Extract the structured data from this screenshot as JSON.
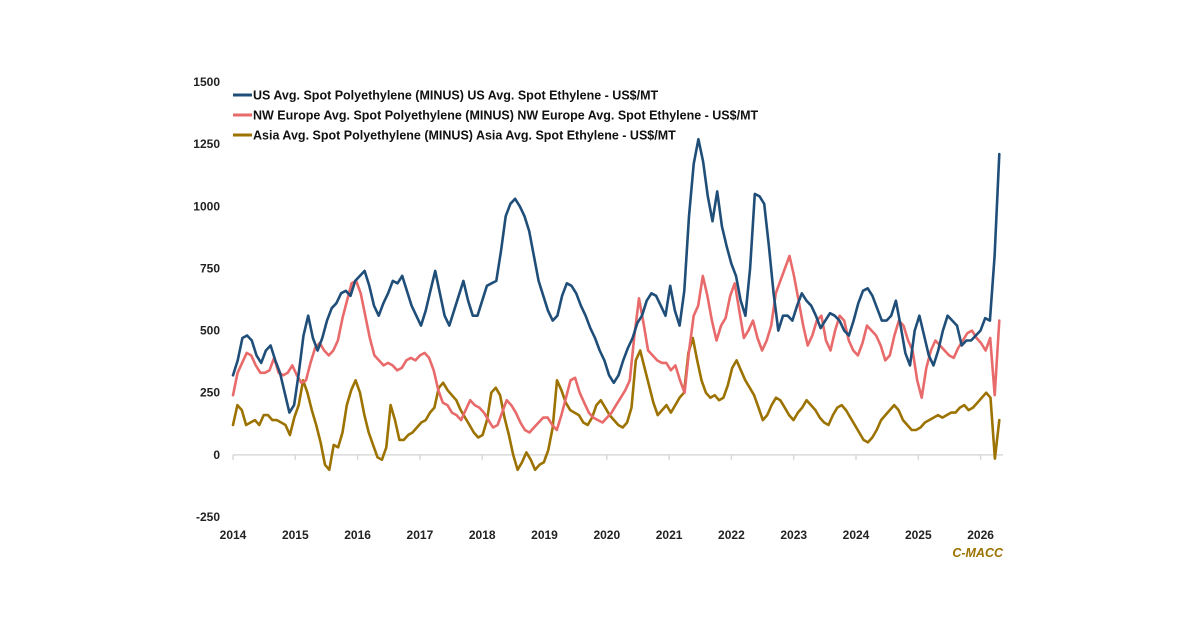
{
  "chart_data": {
    "type": "line",
    "title": "",
    "xlabel": "",
    "ylabel": "",
    "xlim": [
      2014,
      2026.3
    ],
    "ylim": [
      -250,
      1500
    ],
    "yticks": [
      -250,
      0,
      250,
      500,
      750,
      1000,
      1250,
      1500
    ],
    "xticks": [
      2014,
      2015,
      2016,
      2017,
      2018,
      2019,
      2020,
      2021,
      2022,
      2023,
      2024,
      2025,
      2026
    ],
    "zero_line": true,
    "grid": false,
    "legend_position": "top-left",
    "source_label": "C-MACC",
    "x_step_months": 1,
    "x_start": 2014.0,
    "series": [
      {
        "name": "US Avg. Spot Polyethylene (MINUS) US Avg. Spot Ethylene - US$/MT",
        "color": "#1F4E79",
        "values": [
          320,
          380,
          470,
          480,
          460,
          400,
          370,
          420,
          440,
          380,
          330,
          250,
          170,
          200,
          330,
          480,
          560,
          470,
          420,
          470,
          540,
          590,
          610,
          650,
          660,
          640,
          700,
          720,
          740,
          680,
          600,
          560,
          610,
          650,
          700,
          690,
          720,
          660,
          600,
          560,
          520,
          580,
          660,
          740,
          650,
          560,
          520,
          580,
          640,
          700,
          620,
          560,
          560,
          620,
          680,
          690,
          700,
          820,
          960,
          1010,
          1030,
          1000,
          960,
          900,
          800,
          700,
          640,
          580,
          540,
          560,
          640,
          690,
          680,
          650,
          600,
          560,
          510,
          470,
          420,
          380,
          320,
          290,
          320,
          380,
          430,
          470,
          530,
          560,
          620,
          650,
          640,
          600,
          560,
          680,
          580,
          520,
          660,
          960,
          1170,
          1270,
          1180,
          1040,
          940,
          1060,
          920,
          840,
          770,
          720,
          620,
          560,
          750,
          1050,
          1040,
          1010,
          840,
          650,
          500,
          560,
          560,
          540,
          600,
          650,
          620,
          600,
          560,
          510,
          540,
          570,
          560,
          540,
          500,
          480,
          540,
          610,
          660,
          670,
          640,
          590,
          540,
          540,
          560,
          620,
          520,
          410,
          360,
          500,
          560,
          480,
          400,
          360,
          420,
          500,
          560,
          540,
          520,
          440,
          460,
          460,
          480,
          500,
          550,
          540,
          800,
          1210
        ]
      },
      {
        "name": "NW Europe Avg. Spot Polyethylene (MINUS) NW Europe Avg. Spot Ethylene - US$/MT",
        "color": "#E86A6A",
        "values": [
          240,
          330,
          370,
          410,
          400,
          360,
          330,
          330,
          340,
          390,
          330,
          320,
          330,
          360,
          320,
          290,
          300,
          370,
          430,
          450,
          420,
          400,
          420,
          460,
          550,
          620,
          690,
          700,
          650,
          560,
          470,
          400,
          380,
          360,
          370,
          360,
          340,
          350,
          380,
          390,
          380,
          400,
          410,
          390,
          340,
          260,
          210,
          200,
          170,
          160,
          140,
          180,
          220,
          200,
          190,
          170,
          140,
          110,
          120,
          170,
          220,
          200,
          170,
          130,
          100,
          90,
          110,
          130,
          150,
          150,
          120,
          100,
          160,
          230,
          300,
          310,
          250,
          210,
          170,
          150,
          140,
          130,
          150,
          170,
          200,
          230,
          260,
          300,
          480,
          630,
          530,
          420,
          400,
          380,
          370,
          370,
          340,
          360,
          300,
          250,
          420,
          560,
          600,
          720,
          640,
          540,
          460,
          520,
          550,
          640,
          690,
          580,
          470,
          500,
          540,
          470,
          420,
          460,
          520,
          650,
          700,
          750,
          800,
          720,
          620,
          520,
          440,
          480,
          540,
          560,
          460,
          420,
          500,
          560,
          540,
          460,
          420,
          400,
          450,
          520,
          500,
          480,
          440,
          380,
          400,
          480,
          540,
          520,
          460,
          420,
          300,
          230,
          350,
          420,
          460,
          440,
          420,
          400,
          390,
          430,
          460,
          490,
          500,
          470,
          450,
          420,
          470,
          240,
          540
        ]
      },
      {
        "name": "Asia Avg. Spot Polyethylene (MINUS) Asia Avg. Spot Ethylene - US$/MT",
        "color": "#9C7200",
        "values": [
          120,
          200,
          180,
          120,
          130,
          140,
          120,
          160,
          160,
          140,
          140,
          130,
          120,
          80,
          150,
          200,
          300,
          250,
          180,
          120,
          50,
          -40,
          -60,
          40,
          30,
          90,
          200,
          260,
          300,
          250,
          160,
          90,
          40,
          -10,
          -20,
          30,
          200,
          140,
          60,
          60,
          80,
          90,
          110,
          130,
          140,
          170,
          190,
          270,
          290,
          260,
          240,
          220,
          180,
          150,
          120,
          90,
          70,
          80,
          140,
          250,
          270,
          240,
          150,
          80,
          0,
          -60,
          -30,
          10,
          -20,
          -60,
          -40,
          -30,
          20,
          110,
          300,
          260,
          210,
          180,
          170,
          160,
          130,
          120,
          150,
          200,
          220,
          190,
          160,
          140,
          120,
          110,
          130,
          190,
          380,
          420,
          350,
          280,
          210,
          160,
          180,
          200,
          170,
          200,
          230,
          250,
          410,
          470,
          380,
          300,
          250,
          230,
          240,
          220,
          230,
          280,
          350,
          380,
          340,
          300,
          270,
          240,
          190,
          140,
          160,
          200,
          230,
          220,
          190,
          160,
          140,
          170,
          190,
          220,
          200,
          180,
          150,
          130,
          120,
          160,
          190,
          200,
          180,
          150,
          120,
          90,
          60,
          50,
          70,
          100,
          140,
          160,
          180,
          200,
          180,
          140,
          120,
          100,
          100,
          110,
          130,
          140,
          150,
          160,
          150,
          160,
          170,
          170,
          190,
          200,
          180,
          190,
          210,
          230,
          250,
          230,
          -15,
          140
        ]
      }
    ]
  }
}
